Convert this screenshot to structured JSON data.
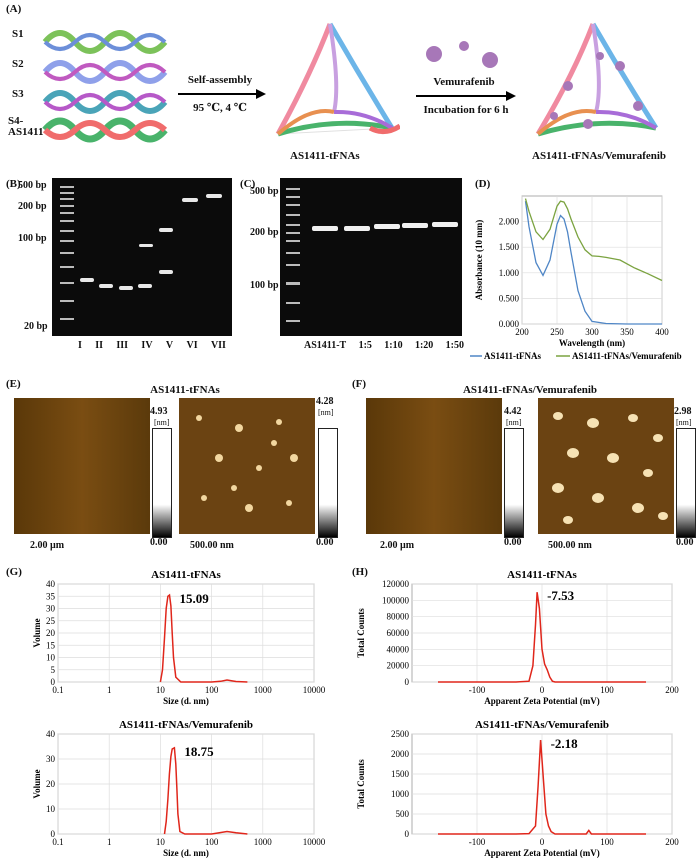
{
  "panelA": {
    "label": "(A)",
    "strands": [
      "S1",
      "S2",
      "S3",
      "S4-\nAS1411"
    ],
    "step1": {
      "line1": "Self-assembly",
      "line2": "95 ℃, 4 ℃"
    },
    "step2": {
      "line1": "Vemurafenib",
      "line2": "Incubation for 6 h"
    },
    "product1": "AS1411-tFNAs",
    "product2": "AS1411-tFNAs/Vemurafenib"
  },
  "panelB": {
    "label": "(B)",
    "markers": [
      "500 bp",
      "200 bp",
      "100 bp",
      "20 bp"
    ],
    "lanes": [
      "I",
      "II",
      "III",
      "IV",
      "V",
      "VI",
      "VII"
    ]
  },
  "panelC": {
    "label": "(C)",
    "markers": [
      "500 bp",
      "200 bp",
      "100 bp"
    ],
    "lanes": [
      "AS1411-T",
      "1:5",
      "1:10",
      "1:20",
      "1:50"
    ]
  },
  "panelD": {
    "label": "(D)",
    "chart_data": {
      "type": "line",
      "xlabel": "Wavelength (nm)",
      "ylabel": "Absorbance (10 mm)",
      "xlim": [
        200,
        400
      ],
      "ylim": [
        0,
        2.5
      ],
      "xticks": [
        "200",
        "250",
        "300",
        "350",
        "400"
      ],
      "yticks": [
        "0.000",
        "0.500",
        "1.000",
        "1.500",
        "2.000"
      ],
      "series": [
        {
          "name": "AS1411-tFNAs",
          "color": "#4f86c6",
          "x": [
            205,
            210,
            220,
            230,
            240,
            250,
            255,
            260,
            265,
            270,
            280,
            290,
            300,
            320,
            350,
            400
          ],
          "y": [
            2.4,
            1.9,
            1.2,
            0.95,
            1.25,
            1.95,
            2.12,
            2.05,
            1.8,
            1.4,
            0.65,
            0.25,
            0.05,
            0.01,
            0.0,
            0.0
          ]
        },
        {
          "name": "AS1411-tFNAs/Vemurafenib",
          "color": "#7ba340",
          "x": [
            205,
            210,
            220,
            230,
            240,
            250,
            255,
            260,
            265,
            270,
            280,
            290,
            300,
            310,
            320,
            340,
            360,
            380,
            400
          ],
          "y": [
            2.45,
            2.2,
            1.8,
            1.65,
            1.85,
            2.3,
            2.4,
            2.38,
            2.25,
            2.05,
            1.7,
            1.45,
            1.33,
            1.32,
            1.3,
            1.25,
            1.1,
            0.98,
            0.85
          ]
        }
      ]
    }
  },
  "panelE": {
    "label": "(E)",
    "title": "AS1411-tFNAs",
    "img1": {
      "max": "4.93",
      "unit": "[nm]",
      "min": "0.00",
      "scale": "2.00 µm"
    },
    "img2": {
      "max": "4.28",
      "unit": "[nm]",
      "min": "0.00",
      "scale": "500.00 nm"
    }
  },
  "panelF": {
    "label": "(F)",
    "title": "AS1411-tFNAs/Vemurafenib",
    "img1": {
      "max": "4.42",
      "unit": "[nm]",
      "min": "0.00",
      "scale": "2.00 µm"
    },
    "img2": {
      "max": "2.98",
      "unit": "[nm]",
      "min": "0.00",
      "scale": "500.00 nm"
    }
  },
  "panelG": {
    "label": "(G)",
    "chart_data": [
      {
        "type": "line",
        "title": "AS1411-tFNAs",
        "xlabel": "Size (d. nm)",
        "ylabel": "Volume",
        "xscale": "log",
        "xlim": [
          0.1,
          10000
        ],
        "ylim": [
          0,
          40
        ],
        "xticks": [
          "0.1",
          "1",
          "10",
          "100",
          "1000",
          "10000"
        ],
        "yticks": [
          "0",
          "5",
          "10",
          "15",
          "20",
          "25",
          "30",
          "35",
          "40"
        ],
        "peak_label": "15.09",
        "x": [
          10,
          11,
          12,
          13,
          14,
          15.09,
          16,
          17,
          18,
          20,
          25,
          50,
          100,
          150,
          200,
          300,
          500
        ],
        "y": [
          0,
          5,
          18,
          30,
          35,
          35.5,
          31,
          20,
          10,
          2,
          0,
          0,
          0,
          0.3,
          0.8,
          0.2,
          0
        ]
      },
      {
        "type": "line",
        "title": "AS1411-tFNAs/Vemurafenib",
        "xlabel": "Size (d. nm)",
        "ylabel": "Volume",
        "xscale": "log",
        "xlim": [
          0.1,
          10000
        ],
        "ylim": [
          0,
          40
        ],
        "xticks": [
          "0.1",
          "1",
          "10",
          "100",
          "1000",
          "10000"
        ],
        "yticks": [
          "0",
          "10",
          "20",
          "30",
          "40"
        ],
        "peak_label": "18.75",
        "x": [
          12,
          13,
          14,
          15,
          16,
          17,
          18.75,
          20,
          21,
          22,
          24,
          30,
          100,
          200,
          300,
          500
        ],
        "y": [
          0,
          5,
          14,
          24,
          31,
          34,
          34.5,
          28,
          18,
          8,
          1,
          0,
          0,
          1,
          0.5,
          0
        ]
      }
    ]
  },
  "panelH": {
    "label": "(H)",
    "chart_data": [
      {
        "type": "line",
        "title": "AS1411-tFNAs",
        "xlabel": "Apparent Zeta Potential (mV)",
        "ylabel": "Total Counts",
        "xlim": [
          -200,
          200
        ],
        "ylim": [
          0,
          120000
        ],
        "xticks": [
          "-100",
          "0",
          "100",
          "200"
        ],
        "yticks": [
          "0",
          "20000",
          "40000",
          "60000",
          "80000",
          "100000",
          "120000"
        ],
        "peak_label": "-7.53",
        "x": [
          -160,
          -40,
          -20,
          -14,
          -10,
          -7.53,
          -4,
          0,
          4,
          8,
          12,
          16,
          20,
          40,
          160
        ],
        "y": [
          0,
          0,
          1000,
          20000,
          70000,
          110000,
          90000,
          40000,
          22000,
          15000,
          6000,
          1000,
          0,
          0,
          0
        ]
      },
      {
        "type": "line",
        "title": "AS1411-tFNAs/Vemurafenib",
        "xlabel": "Apparent Zeta Potential (mV)",
        "ylabel": "Total Counts",
        "xlim": [
          -200,
          200
        ],
        "ylim": [
          0,
          2500
        ],
        "xticks": [
          "-100",
          "0",
          "100",
          "200"
        ],
        "yticks": [
          "0",
          "500",
          "1000",
          "1500",
          "2000",
          "2500"
        ],
        "peak_label": "-2.18",
        "x": [
          -160,
          -40,
          -20,
          -10,
          -6,
          -2.18,
          2,
          6,
          10,
          14,
          20,
          40,
          68,
          72,
          76,
          80,
          160
        ],
        "y": [
          0,
          0,
          10,
          200,
          1200,
          2350,
          1400,
          500,
          200,
          60,
          0,
          0,
          0,
          90,
          0,
          0,
          0
        ]
      }
    ]
  }
}
